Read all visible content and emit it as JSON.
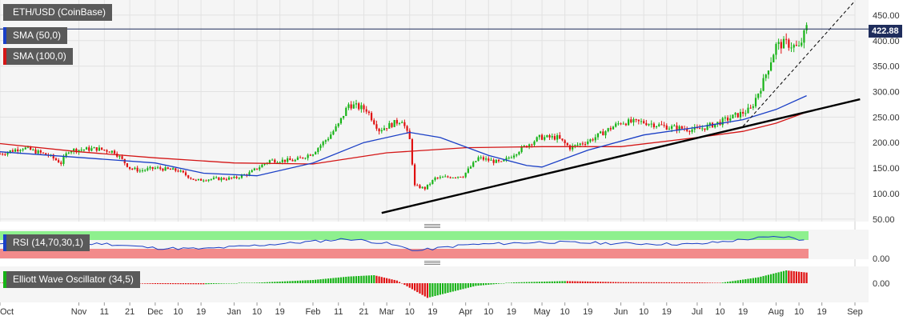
{
  "legend": {
    "instrument": "ETH/USD (CoinBase)",
    "sma50": "SMA (50,0)",
    "sma100": "SMA (100,0)",
    "rsi": "RSI (14,70,30,1)",
    "ewo": "Elliott Wave Oscillator (34,5)"
  },
  "last_price_label": "422.88",
  "colors": {
    "up": "#17b317",
    "down": "#e01010",
    "sma50": "#1a3fc6",
    "sma100": "#d41616",
    "trendline": "#000000",
    "price_line": "#1f2d5c",
    "rsi_line": "#1a3fc6",
    "rsi_overbought": "#8ef08e",
    "rsi_oversold": "#f28b8b",
    "panel_bg": "#f5f5f5",
    "grid": "#e2e2e2"
  },
  "chart_data": [
    {
      "type": "candlestick",
      "title": "ETH/USD (CoinBase)",
      "x_range": [
        "2019-10-01",
        "2020-09-01"
      ],
      "ylim": [
        45,
        475
      ],
      "y_ticks": [
        "450.00",
        "400.00",
        "350.00",
        "300.00",
        "250.00",
        "200.00",
        "150.00",
        "100.00",
        "50.00"
      ],
      "y_tick_values": [
        450,
        400,
        350,
        300,
        250,
        200,
        150,
        100,
        50
      ],
      "last_price": 422.88,
      "x_ticks": [
        {
          "date": "2019-10-01",
          "label": "Oct"
        },
        {
          "date": "2019-11-01",
          "label": "Nov"
        },
        {
          "date": "2019-11-11",
          "label": "11"
        },
        {
          "date": "2019-11-21",
          "label": "21"
        },
        {
          "date": "2019-12-01",
          "label": "Dec"
        },
        {
          "date": "2019-12-10",
          "label": "10"
        },
        {
          "date": "2019-12-19",
          "label": "19"
        },
        {
          "date": "2020-01-01",
          "label": "Jan"
        },
        {
          "date": "2020-01-10",
          "label": "10"
        },
        {
          "date": "2020-01-19",
          "label": "19"
        },
        {
          "date": "2020-02-01",
          "label": "Feb"
        },
        {
          "date": "2020-02-11",
          "label": "11"
        },
        {
          "date": "2020-02-21",
          "label": "21"
        },
        {
          "date": "2020-03-01",
          "label": "Mar"
        },
        {
          "date": "2020-03-10",
          "label": "10"
        },
        {
          "date": "2020-03-19",
          "label": "19"
        },
        {
          "date": "2020-04-01",
          "label": "Apr"
        },
        {
          "date": "2020-04-10",
          "label": "10"
        },
        {
          "date": "2020-04-19",
          "label": "19"
        },
        {
          "date": "2020-05-01",
          "label": "May"
        },
        {
          "date": "2020-05-10",
          "label": "10"
        },
        {
          "date": "2020-05-19",
          "label": "19"
        },
        {
          "date": "2020-06-01",
          "label": "Jun"
        },
        {
          "date": "2020-06-10",
          "label": "10"
        },
        {
          "date": "2020-06-19",
          "label": "19"
        },
        {
          "date": "2020-07-01",
          "label": "Jul"
        },
        {
          "date": "2020-07-10",
          "label": "10"
        },
        {
          "date": "2020-07-19",
          "label": "19"
        },
        {
          "date": "2020-08-01",
          "label": "Aug"
        },
        {
          "date": "2020-08-10",
          "label": "10"
        },
        {
          "date": "2020-08-19",
          "label": "19"
        },
        {
          "date": "2020-09-01",
          "label": "Sep"
        }
      ],
      "price_path": [
        [
          "2019-10-01",
          178
        ],
        [
          "2019-10-10",
          190
        ],
        [
          "2019-10-20",
          175
        ],
        [
          "2019-10-25",
          160
        ],
        [
          "2019-10-28",
          185
        ],
        [
          "2019-11-08",
          188
        ],
        [
          "2019-11-15",
          182
        ],
        [
          "2019-11-21",
          150
        ],
        [
          "2019-11-25",
          145
        ],
        [
          "2019-12-01",
          150
        ],
        [
          "2019-12-10",
          145
        ],
        [
          "2019-12-17",
          125
        ],
        [
          "2019-12-20",
          128
        ],
        [
          "2020-01-01",
          130
        ],
        [
          "2020-01-07",
          140
        ],
        [
          "2020-01-15",
          165
        ],
        [
          "2020-01-25",
          165
        ],
        [
          "2020-02-01",
          180
        ],
        [
          "2020-02-07",
          210
        ],
        [
          "2020-02-11",
          235
        ],
        [
          "2020-02-15",
          275
        ],
        [
          "2020-02-22",
          265
        ],
        [
          "2020-02-27",
          225
        ],
        [
          "2020-03-07",
          245
        ],
        [
          "2020-03-10",
          205
        ],
        [
          "2020-03-12",
          115
        ],
        [
          "2020-03-16",
          110
        ],
        [
          "2020-03-20",
          130
        ],
        [
          "2020-03-31",
          135
        ],
        [
          "2020-04-06",
          170
        ],
        [
          "2020-04-15",
          160
        ],
        [
          "2020-04-22",
          185
        ],
        [
          "2020-04-30",
          210
        ],
        [
          "2020-05-07",
          210
        ],
        [
          "2020-05-12",
          190
        ],
        [
          "2020-05-20",
          205
        ],
        [
          "2020-06-01",
          240
        ],
        [
          "2020-06-10",
          240
        ],
        [
          "2020-06-20",
          230
        ],
        [
          "2020-07-01",
          225
        ],
        [
          "2020-07-10",
          240
        ],
        [
          "2020-07-22",
          265
        ],
        [
          "2020-07-27",
          320
        ],
        [
          "2020-08-01",
          390
        ],
        [
          "2020-08-05",
          395
        ],
        [
          "2020-08-10",
          385
        ],
        [
          "2020-08-13",
          425
        ]
      ],
      "sma50_points": [
        [
          "2019-10-01",
          182
        ],
        [
          "2019-12-01",
          160
        ],
        [
          "2019-12-20",
          140
        ],
        [
          "2020-01-10",
          135
        ],
        [
          "2020-02-01",
          160
        ],
        [
          "2020-02-21",
          200
        ],
        [
          "2020-03-10",
          220
        ],
        [
          "2020-03-22",
          210
        ],
        [
          "2020-04-10",
          175
        ],
        [
          "2020-04-25",
          155
        ],
        [
          "2020-05-01",
          152
        ],
        [
          "2020-05-19",
          185
        ],
        [
          "2020-06-10",
          215
        ],
        [
          "2020-07-01",
          230
        ],
        [
          "2020-07-19",
          245
        ],
        [
          "2020-08-01",
          265
        ],
        [
          "2020-08-13",
          292
        ]
      ],
      "sma100_points": [
        [
          "2019-10-01",
          198
        ],
        [
          "2019-11-01",
          182
        ],
        [
          "2019-12-01",
          170
        ],
        [
          "2020-01-01",
          160
        ],
        [
          "2020-02-01",
          158
        ],
        [
          "2020-03-01",
          180
        ],
        [
          "2020-04-01",
          190
        ],
        [
          "2020-05-01",
          192
        ],
        [
          "2020-06-01",
          192
        ],
        [
          "2020-07-01",
          210
        ],
        [
          "2020-07-19",
          222
        ],
        [
          "2020-08-01",
          238
        ],
        [
          "2020-08-13",
          260
        ]
      ],
      "trendlines": [
        {
          "style": "solid",
          "from": [
            "2020-02-28",
            62
          ],
          "to": [
            "2020-09-03",
            285
          ]
        },
        {
          "style": "dashed",
          "from": [
            "2020-07-19",
            232
          ],
          "to": [
            "2020-09-01",
            478
          ]
        }
      ]
    },
    {
      "type": "line",
      "title": "RSI (14,70,30,1)",
      "y_ticks": [
        "0.00"
      ],
      "overbought": 70,
      "oversold": 30,
      "ylim": [
        0,
        100
      ],
      "points": [
        [
          "2019-10-01",
          52
        ],
        [
          "2019-10-20",
          45
        ],
        [
          "2019-11-10",
          55
        ],
        [
          "2019-12-01",
          38
        ],
        [
          "2019-12-20",
          35
        ],
        [
          "2020-01-10",
          48
        ],
        [
          "2020-02-01",
          62
        ],
        [
          "2020-02-15",
          72
        ],
        [
          "2020-03-01",
          55
        ],
        [
          "2020-03-13",
          28
        ],
        [
          "2020-04-01",
          50
        ],
        [
          "2020-05-01",
          60
        ],
        [
          "2020-06-01",
          55
        ],
        [
          "2020-07-01",
          52
        ],
        [
          "2020-07-25",
          75
        ],
        [
          "2020-08-05",
          80
        ],
        [
          "2020-08-10",
          68
        ],
        [
          "2020-08-13",
          74
        ]
      ]
    },
    {
      "type": "histogram",
      "title": "Elliott Wave Oscillator (34,5)",
      "y_ticks": [
        "0.00"
      ],
      "ylim": [
        -60,
        60
      ],
      "envelope": [
        [
          "2019-10-01",
          1
        ],
        [
          "2019-10-20",
          -2
        ],
        [
          "2019-11-10",
          2
        ],
        [
          "2019-12-01",
          -3
        ],
        [
          "2019-12-20",
          -4
        ],
        [
          "2020-01-10",
          2
        ],
        [
          "2020-02-01",
          12
        ],
        [
          "2020-02-15",
          25
        ],
        [
          "2020-02-25",
          30
        ],
        [
          "2020-03-05",
          10
        ],
        [
          "2020-03-17",
          -55
        ],
        [
          "2020-04-05",
          -10
        ],
        [
          "2020-04-20",
          3
        ],
        [
          "2020-05-10",
          8
        ],
        [
          "2020-06-01",
          4
        ],
        [
          "2020-07-01",
          3
        ],
        [
          "2020-07-10",
          1
        ],
        [
          "2020-07-25",
          22
        ],
        [
          "2020-08-05",
          48
        ],
        [
          "2020-08-13",
          40
        ]
      ]
    }
  ]
}
